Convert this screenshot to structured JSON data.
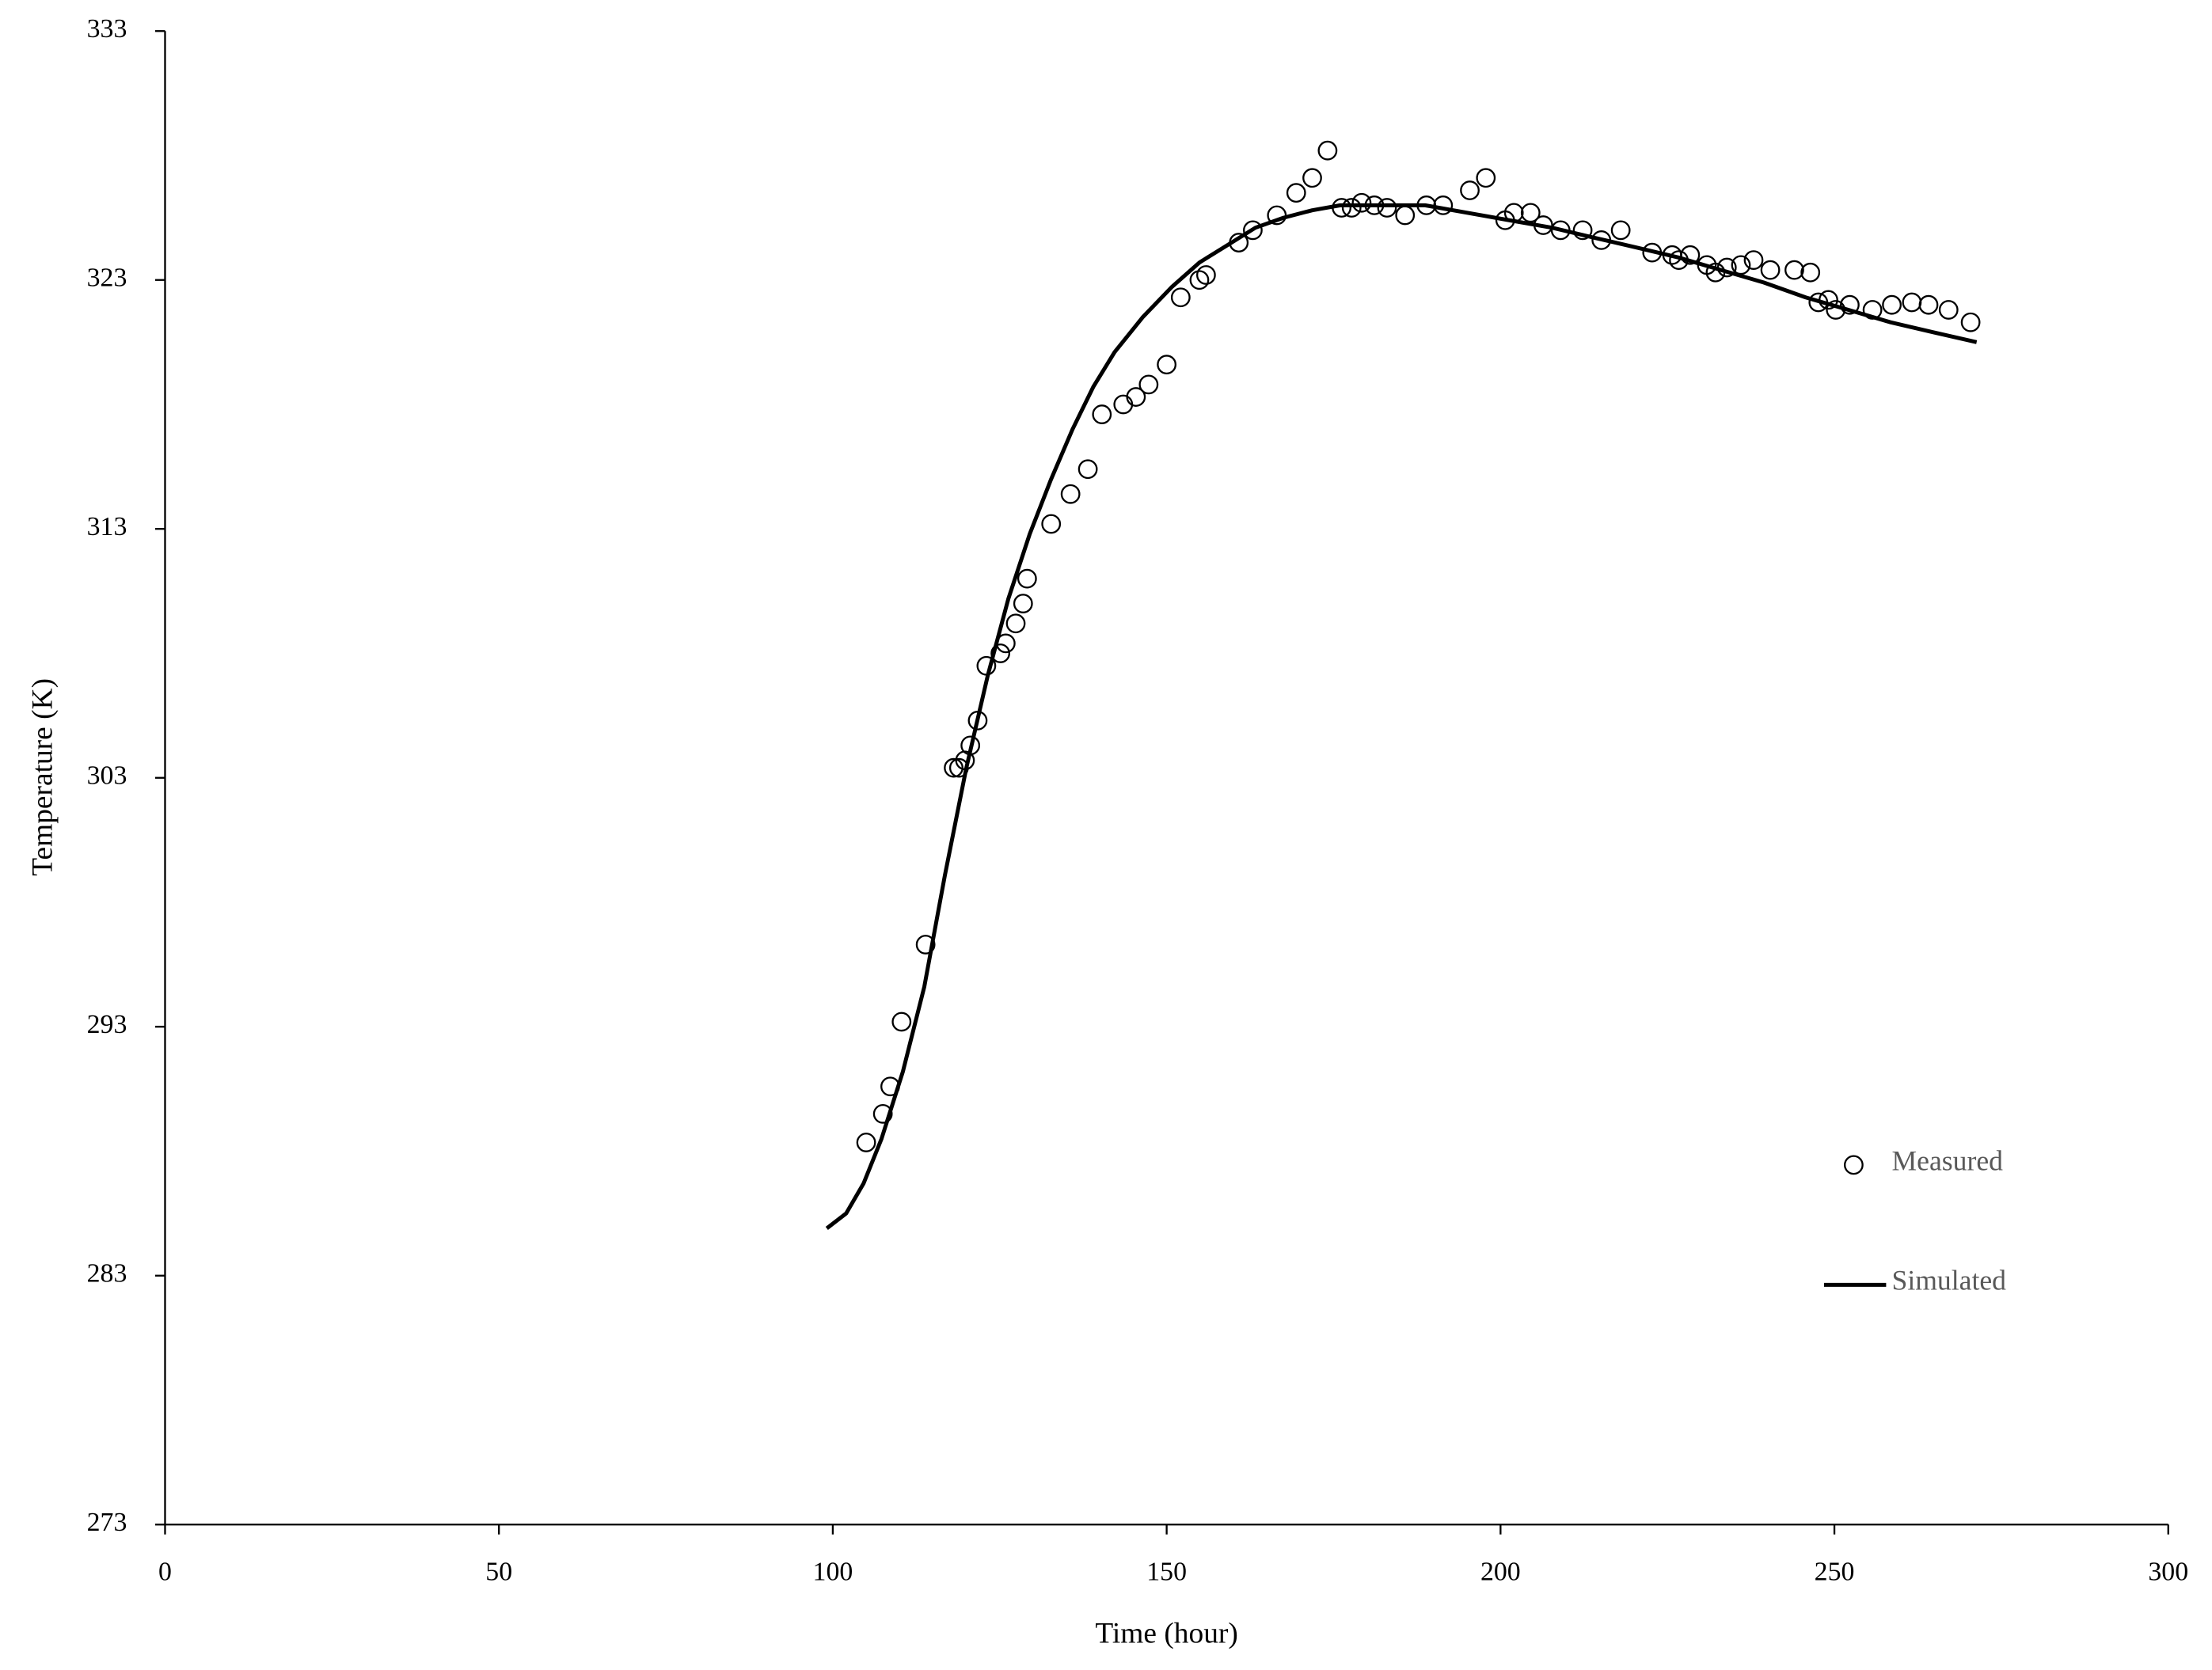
{
  "chart_data": {
    "type": "scatter",
    "x_label": "Time (hour)",
    "y_label": "Temperature (K)",
    "xlim": [
      0,
      300
    ],
    "ylim": [
      273,
      333
    ],
    "xticks": [
      0,
      50,
      100,
      150,
      200,
      250,
      300
    ],
    "yticks": [
      273,
      283,
      293,
      303,
      313,
      323,
      333
    ],
    "grid": false,
    "legend_position": "lower right",
    "series": [
      {
        "name": "Measured",
        "color": "#000000",
        "marker": "circle",
        "x": [
          105.0,
          107.5,
          108.6,
          110.3,
          113.9,
          118.1,
          118.9,
          119.8,
          120.6,
          121.7,
          123.0,
          125.1,
          125.9,
          127.4,
          128.5,
          129.1,
          132.7,
          135.6,
          138.2,
          140.3,
          143.5,
          145.4,
          147.3,
          150.0,
          152.1,
          154.9,
          155.9,
          160.8,
          162.9,
          166.5,
          169.4,
          171.8,
          174.1,
          176.2,
          177.7,
          179.2,
          181.1,
          183.0,
          185.7,
          188.9,
          191.4,
          195.4,
          197.8,
          200.7,
          202.0,
          204.5,
          206.4,
          209.0,
          212.3,
          215.1,
          218.0,
          222.7,
          225.7,
          226.7,
          228.4,
          230.9,
          232.2,
          233.9,
          236.0,
          237.9,
          240.4,
          244.0,
          246.4,
          247.6,
          249.1,
          250.2,
          252.3,
          255.7,
          258.6,
          261.6,
          264.1,
          267.1,
          270.4
        ],
        "values": [
          288.35,
          289.5,
          290.6,
          293.2,
          296.3,
          303.4,
          303.4,
          303.7,
          304.3,
          305.3,
          307.5,
          308.0,
          308.4,
          309.2,
          310.0,
          311.0,
          313.2,
          314.4,
          315.4,
          317.6,
          318.0,
          318.3,
          318.8,
          319.6,
          322.3,
          323.0,
          323.2,
          324.5,
          325.0,
          325.6,
          326.5,
          327.1,
          328.2,
          325.9,
          325.9,
          326.1,
          326.0,
          325.9,
          325.6,
          326.0,
          326.0,
          326.6,
          327.1,
          325.4,
          325.7,
          325.7,
          325.2,
          325.0,
          325.0,
          324.6,
          325.0,
          324.1,
          324.0,
          323.8,
          324.0,
          323.6,
          323.3,
          323.5,
          323.6,
          323.8,
          323.4,
          323.4,
          323.3,
          322.1,
          322.2,
          321.8,
          322.0,
          321.8,
          322.0,
          322.1,
          322.0,
          321.8,
          321.3
        ]
      },
      {
        "name": "Simulated",
        "color": "#000000",
        "marker": "line",
        "x": [
          99.1,
          102.0,
          104.6,
          107.3,
          110.5,
          113.7,
          116.8,
          120.0,
          123.2,
          126.3,
          129.5,
          132.7,
          135.9,
          139.0,
          142.2,
          146.4,
          150.7,
          154.9,
          159.1,
          163.3,
          167.5,
          171.8,
          176.0,
          182.3,
          188.7,
          195.0,
          201.3,
          207.7,
          214.0,
          220.4,
          226.7,
          233.0,
          239.4,
          245.7,
          252.1,
          258.4,
          264.8,
          271.3
        ],
        "values": [
          284.9,
          285.5,
          286.7,
          288.5,
          291.2,
          294.6,
          299.1,
          303.4,
          307.1,
          310.2,
          312.8,
          315.0,
          317.0,
          318.7,
          320.1,
          321.5,
          322.7,
          323.7,
          324.4,
          325.1,
          325.5,
          325.8,
          326.0,
          326.0,
          326.0,
          325.7,
          325.4,
          325.1,
          324.7,
          324.3,
          323.9,
          323.4,
          322.9,
          322.3,
          321.8,
          321.3,
          320.9,
          320.5
        ]
      }
    ]
  }
}
